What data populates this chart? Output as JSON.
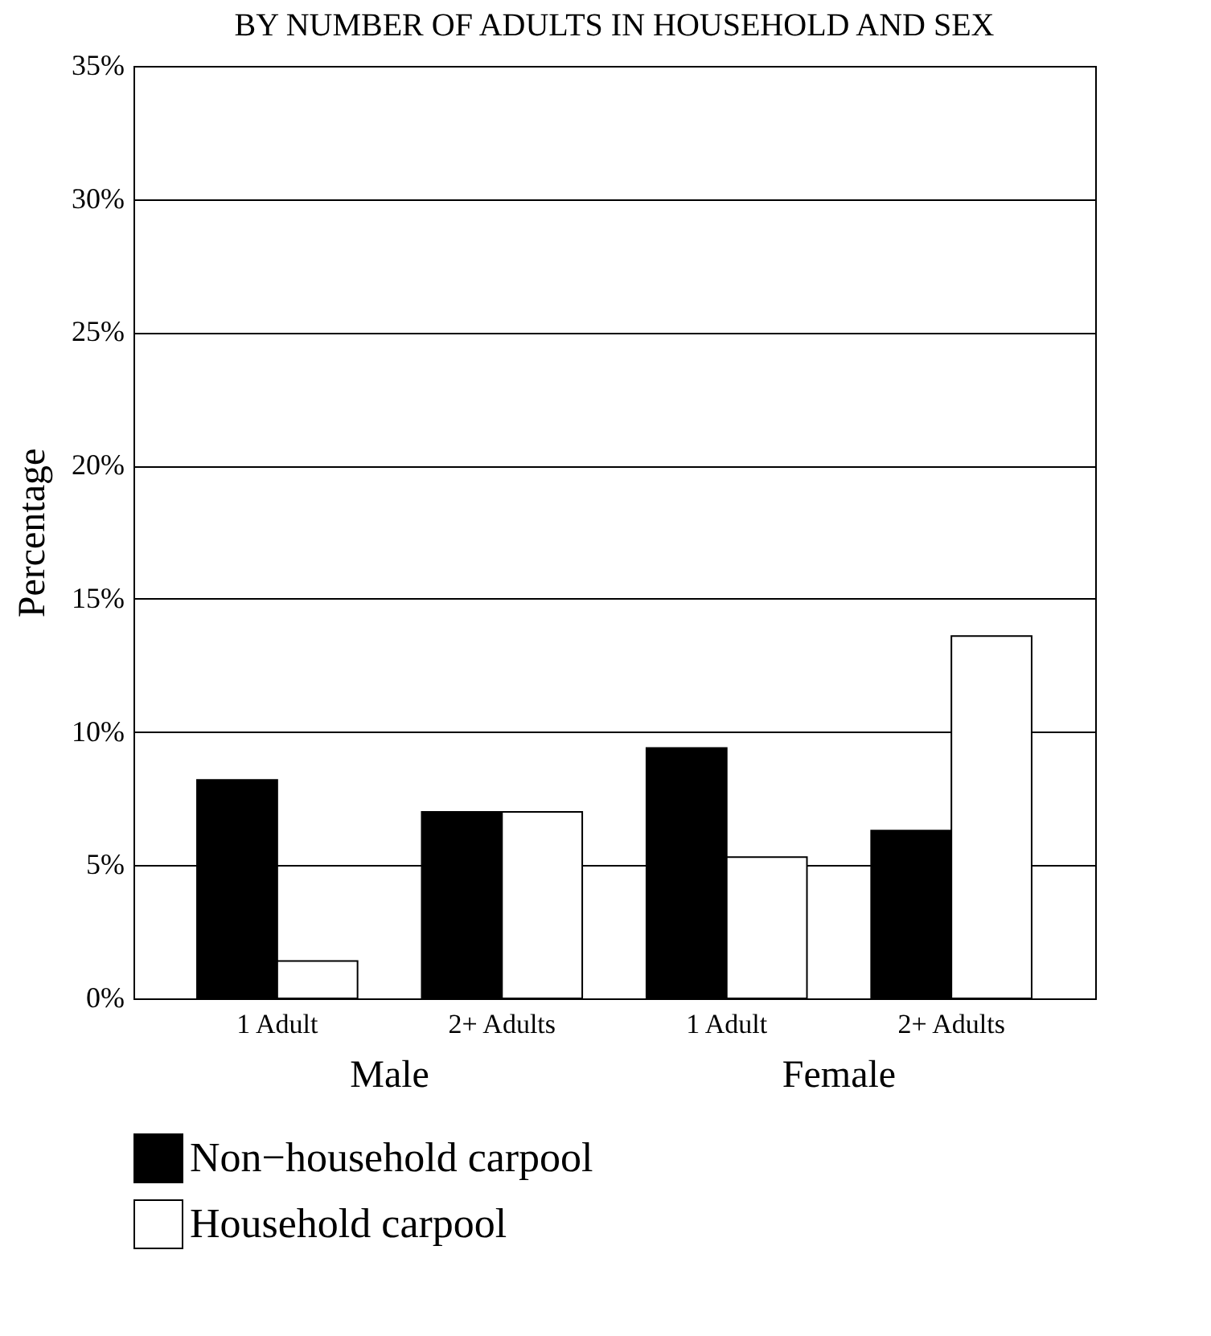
{
  "chart_data": {
    "type": "bar",
    "title": "BY NUMBER OF ADULTS IN HOUSEHOLD AND SEX",
    "ylabel": "Percentage",
    "categories": [
      "1 Adult",
      "2+ Adults",
      "1 Adult",
      "2+ Adults"
    ],
    "series": [
      {
        "name": "Non−household carpool",
        "color": "#000000",
        "values": [
          8.2,
          7.0,
          9.4,
          6.3
        ]
      },
      {
        "name": "Household carpool",
        "color": "#ffffff",
        "values": [
          1.4,
          7.0,
          5.3,
          13.6
        ]
      }
    ],
    "annotations": [
      "Male",
      "Female"
    ],
    "ylim": [
      0,
      35
    ],
    "yticks": [
      {
        "value": 0,
        "label": "0%"
      },
      {
        "value": 5,
        "label": "5%"
      },
      {
        "value": 10,
        "label": "10%"
      },
      {
        "value": 15,
        "label": "15%"
      },
      {
        "value": 20,
        "label": "20%"
      },
      {
        "value": 25,
        "label": "25%"
      },
      {
        "value": 30,
        "label": "30%"
      },
      {
        "value": 35,
        "label": "35%"
      }
    ],
    "grid": "y",
    "legend": "bottom"
  }
}
